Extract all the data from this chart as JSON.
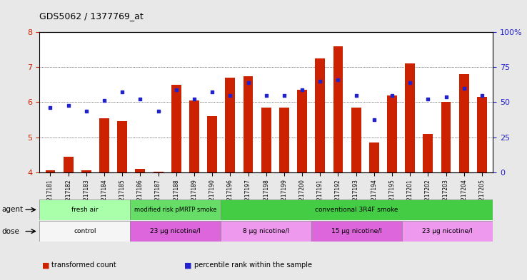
{
  "title": "GDS5062 / 1377769_at",
  "samples": [
    "GSM1217181",
    "GSM1217182",
    "GSM1217183",
    "GSM1217184",
    "GSM1217185",
    "GSM1217186",
    "GSM1217187",
    "GSM1217188",
    "GSM1217189",
    "GSM1217190",
    "GSM1217196",
    "GSM1217197",
    "GSM1217198",
    "GSM1217199",
    "GSM1217200",
    "GSM1217191",
    "GSM1217192",
    "GSM1217193",
    "GSM1217194",
    "GSM1217195",
    "GSM1217201",
    "GSM1217202",
    "GSM1217203",
    "GSM1217204",
    "GSM1217205"
  ],
  "bar_values": [
    4.05,
    4.45,
    4.05,
    5.55,
    5.45,
    4.1,
    4.02,
    6.5,
    6.05,
    5.6,
    6.7,
    6.75,
    5.85,
    5.85,
    6.35,
    7.25,
    7.6,
    5.85,
    4.85,
    6.2,
    7.1,
    5.1,
    6.0,
    6.8,
    6.15
  ],
  "dot_values": [
    5.85,
    5.9,
    5.75,
    6.05,
    6.3,
    6.1,
    5.75,
    6.35,
    6.1,
    6.3,
    6.2,
    6.55,
    6.2,
    6.2,
    6.35,
    6.6,
    6.65,
    6.2,
    5.5,
    6.2,
    6.55,
    6.1,
    6.15,
    6.4,
    6.2
  ],
  "bar_color": "#cc2200",
  "dot_color": "#2222cc",
  "ylim_left": [
    4,
    8
  ],
  "yticks_left": [
    4,
    5,
    6,
    7,
    8
  ],
  "ylim_right": [
    0,
    100
  ],
  "yticks_right": [
    0,
    25,
    50,
    75,
    100
  ],
  "yticklabels_right": [
    "0",
    "25",
    "50",
    "75",
    "100%"
  ],
  "agent_groups": [
    {
      "label": "fresh air",
      "start": 0,
      "end": 5,
      "color": "#aaffaa"
    },
    {
      "label": "modified risk pMRTP smoke",
      "start": 5,
      "end": 10,
      "color": "#66dd66"
    },
    {
      "label": "conventional 3R4F smoke",
      "start": 10,
      "end": 25,
      "color": "#44cc44"
    }
  ],
  "dose_groups": [
    {
      "label": "control",
      "start": 0,
      "end": 5,
      "color": "#f5f5f5"
    },
    {
      "label": "23 μg nicotine/l",
      "start": 5,
      "end": 10,
      "color": "#dd66dd"
    },
    {
      "label": "8 μg nicotine/l",
      "start": 10,
      "end": 15,
      "color": "#ee99ee"
    },
    {
      "label": "15 μg nicotine/l",
      "start": 15,
      "end": 20,
      "color": "#dd66dd"
    },
    {
      "label": "23 μg nicotine/l",
      "start": 20,
      "end": 25,
      "color": "#ee99ee"
    }
  ],
  "legend_items": [
    {
      "label": "transformed count",
      "color": "#cc2200"
    },
    {
      "label": "percentile rank within the sample",
      "color": "#2222cc"
    }
  ],
  "background_color": "#e8e8e8",
  "plot_bg_color": "#ffffff"
}
